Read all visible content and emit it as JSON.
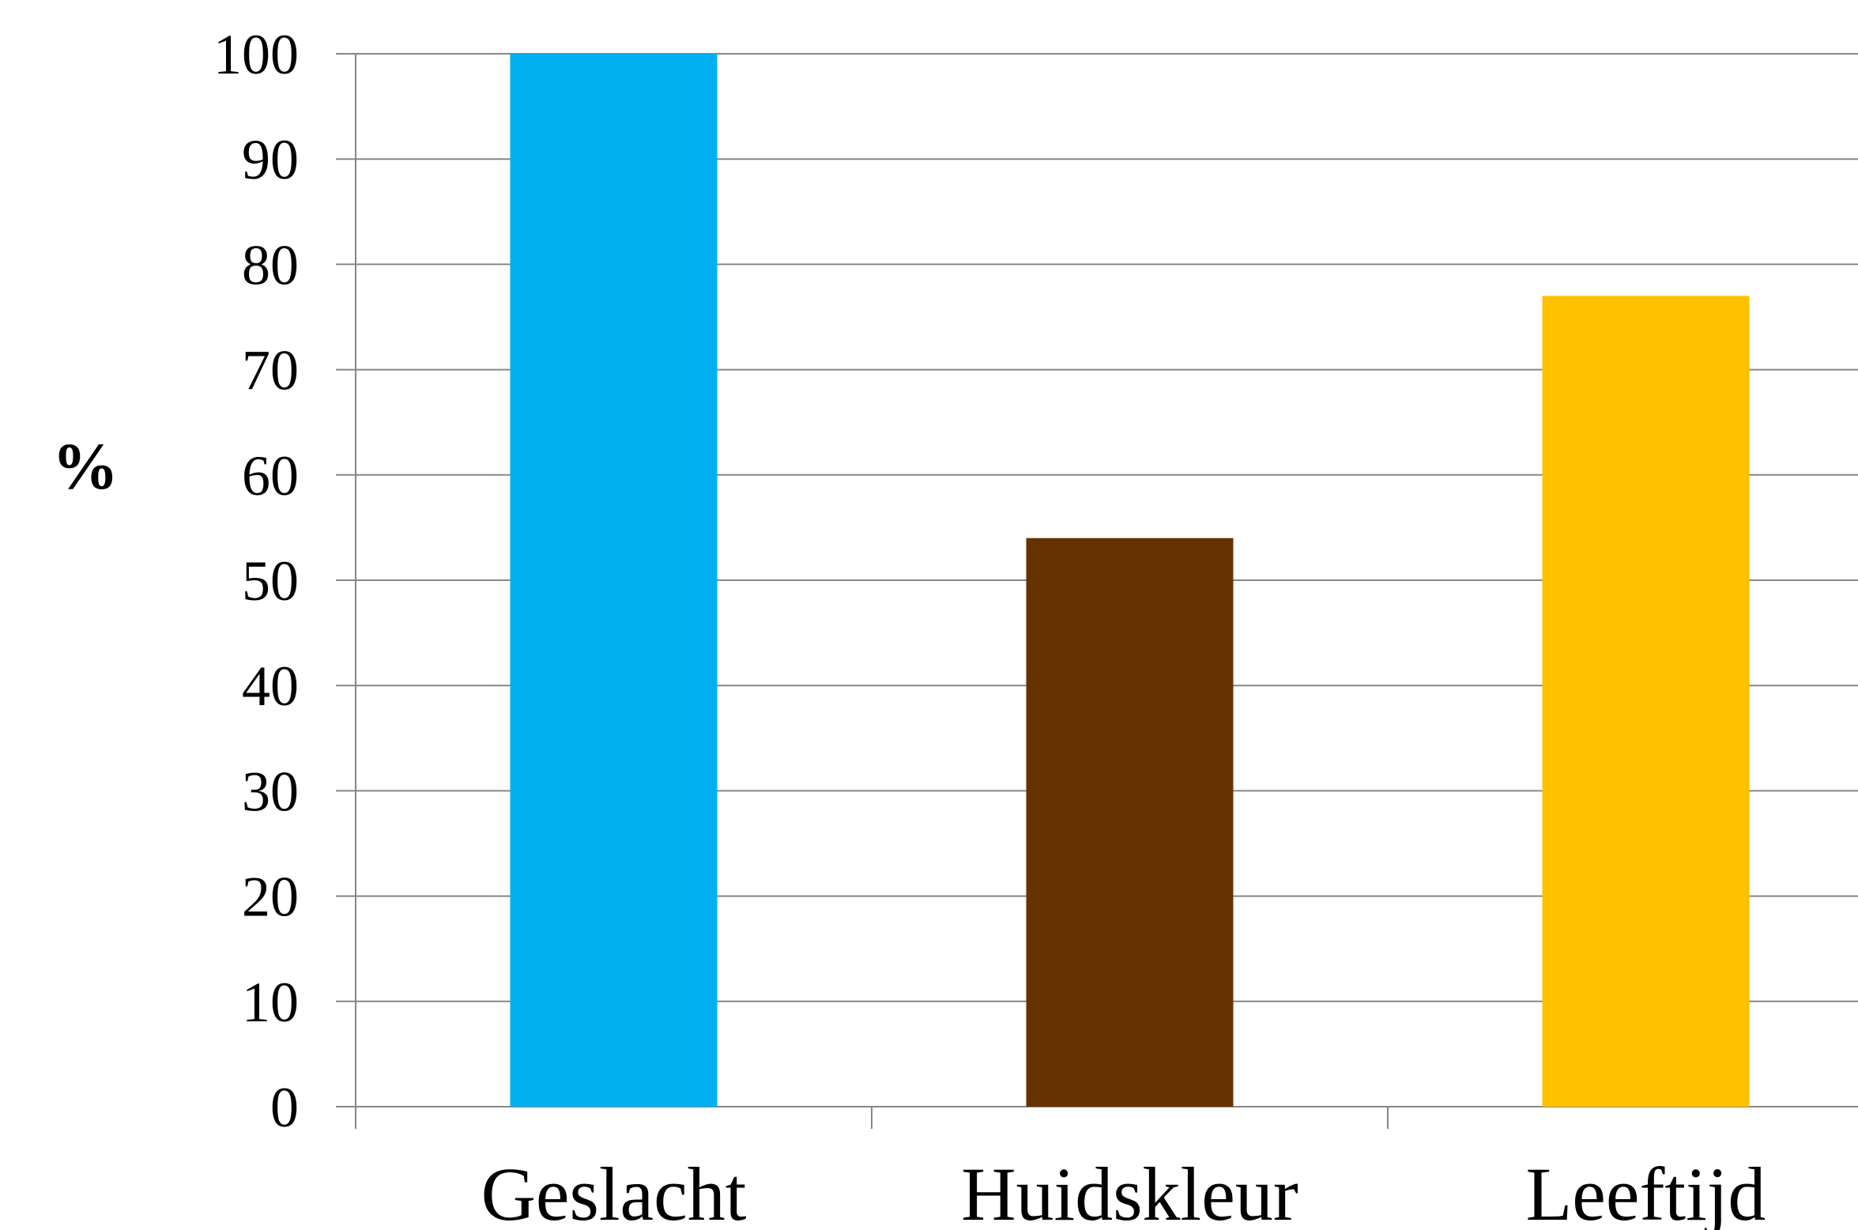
{
  "chart_data": {
    "type": "bar",
    "categories": [
      "Geslacht",
      "Huidskleur",
      "Leeftijd"
    ],
    "values": [
      100,
      54,
      77
    ],
    "colors": [
      "#00B0F0",
      "#663300",
      "#FFC000"
    ],
    "title": "",
    "xlabel": "",
    "ylabel": "%",
    "ylim": [
      0,
      100
    ],
    "yticks": [
      "0",
      "10",
      "20",
      "30",
      "40",
      "50",
      "60",
      "70",
      "80",
      "90",
      "100"
    ],
    "grid": true,
    "legend": "none",
    "gridline_color": "#868686"
  }
}
